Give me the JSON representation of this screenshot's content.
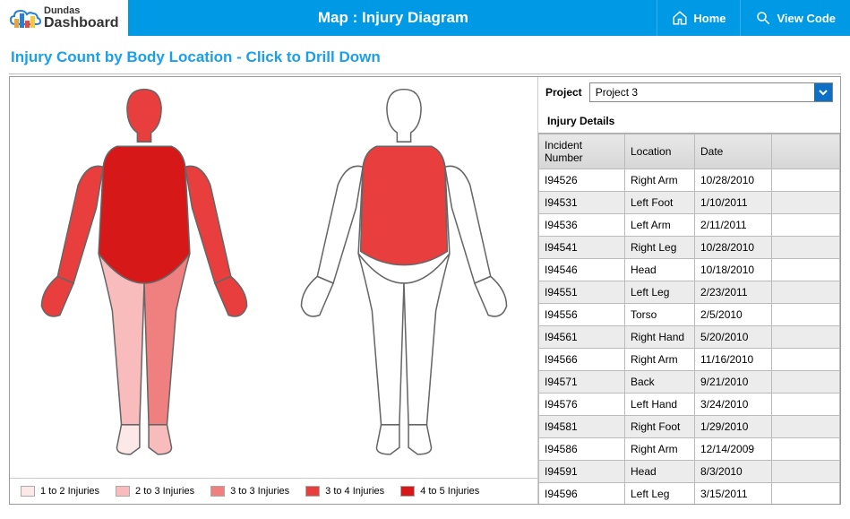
{
  "header": {
    "title": "Map : Injury Diagram",
    "home_label": "Home",
    "viewcode_label": "View Code",
    "logo_text1": "Dundas",
    "logo_text2": "Dashboard"
  },
  "panel": {
    "title": "Injury Count by Body Location - Click to Drill Down"
  },
  "project": {
    "label": "Project",
    "selected": "Project 3"
  },
  "details": {
    "title": "Injury Details"
  },
  "table": {
    "columns": {
      "incident": "Incident Number",
      "location": "Location",
      "date": "Date"
    },
    "rows": [
      {
        "id": "I94526",
        "loc": "Right Arm",
        "date": "10/28/2010"
      },
      {
        "id": "I94531",
        "loc": "Left Foot",
        "date": "1/10/2011"
      },
      {
        "id": "I94536",
        "loc": "Left Arm",
        "date": "2/11/2011"
      },
      {
        "id": "I94541",
        "loc": "Right Leg",
        "date": "10/28/2010"
      },
      {
        "id": "I94546",
        "loc": "Head",
        "date": "10/18/2010"
      },
      {
        "id": "I94551",
        "loc": "Left Leg",
        "date": "2/23/2011"
      },
      {
        "id": "I94556",
        "loc": "Torso",
        "date": "2/5/2010"
      },
      {
        "id": "I94561",
        "loc": "Right Hand",
        "date": "5/20/2010"
      },
      {
        "id": "I94566",
        "loc": "Right Arm",
        "date": "11/16/2010"
      },
      {
        "id": "I94571",
        "loc": "Back",
        "date": "9/21/2010"
      },
      {
        "id": "I94576",
        "loc": "Left Hand",
        "date": "3/24/2010"
      },
      {
        "id": "I94581",
        "loc": "Right Foot",
        "date": "1/29/2010"
      },
      {
        "id": "I94586",
        "loc": "Right Arm",
        "date": "12/14/2009"
      },
      {
        "id": "I94591",
        "loc": "Head",
        "date": "8/3/2010"
      },
      {
        "id": "I94596",
        "loc": "Left Leg",
        "date": "3/15/2011"
      }
    ]
  },
  "legend": {
    "items": [
      {
        "label": "1 to 2 Injuries",
        "color": "#fde8e8"
      },
      {
        "label": "2 to 3 Injuries",
        "color": "#f8bcbc"
      },
      {
        "label": "3 to 3 Injuries",
        "color": "#f07f7f"
      },
      {
        "label": "3 to 4 Injuries",
        "color": "#e83e3e"
      },
      {
        "label": "4 to 5 Injuries",
        "color": "#d61818"
      }
    ]
  },
  "body_front": {
    "outline": "#666666",
    "regions": {
      "head": "#e83e3e",
      "torso": "#d61818",
      "left_arm": "#e83e3e",
      "right_arm": "#e83e3e",
      "left_hand": "#e83e3e",
      "right_hand": "#e83e3e",
      "left_leg": "#f8bcbc",
      "right_leg": "#f07f7f",
      "left_foot": "#fde8e8",
      "right_foot": "#f8bcbc"
    }
  },
  "body_back": {
    "outline": "#666666",
    "regions": {
      "back": "#e83e3e"
    }
  },
  "logo_bars": [
    {
      "h": 10,
      "c": "#e8a33a"
    },
    {
      "h": 16,
      "c": "#2a7fd4"
    },
    {
      "h": 8,
      "c": "#e84a3a"
    },
    {
      "h": 13,
      "c": "#f2c93a"
    }
  ]
}
